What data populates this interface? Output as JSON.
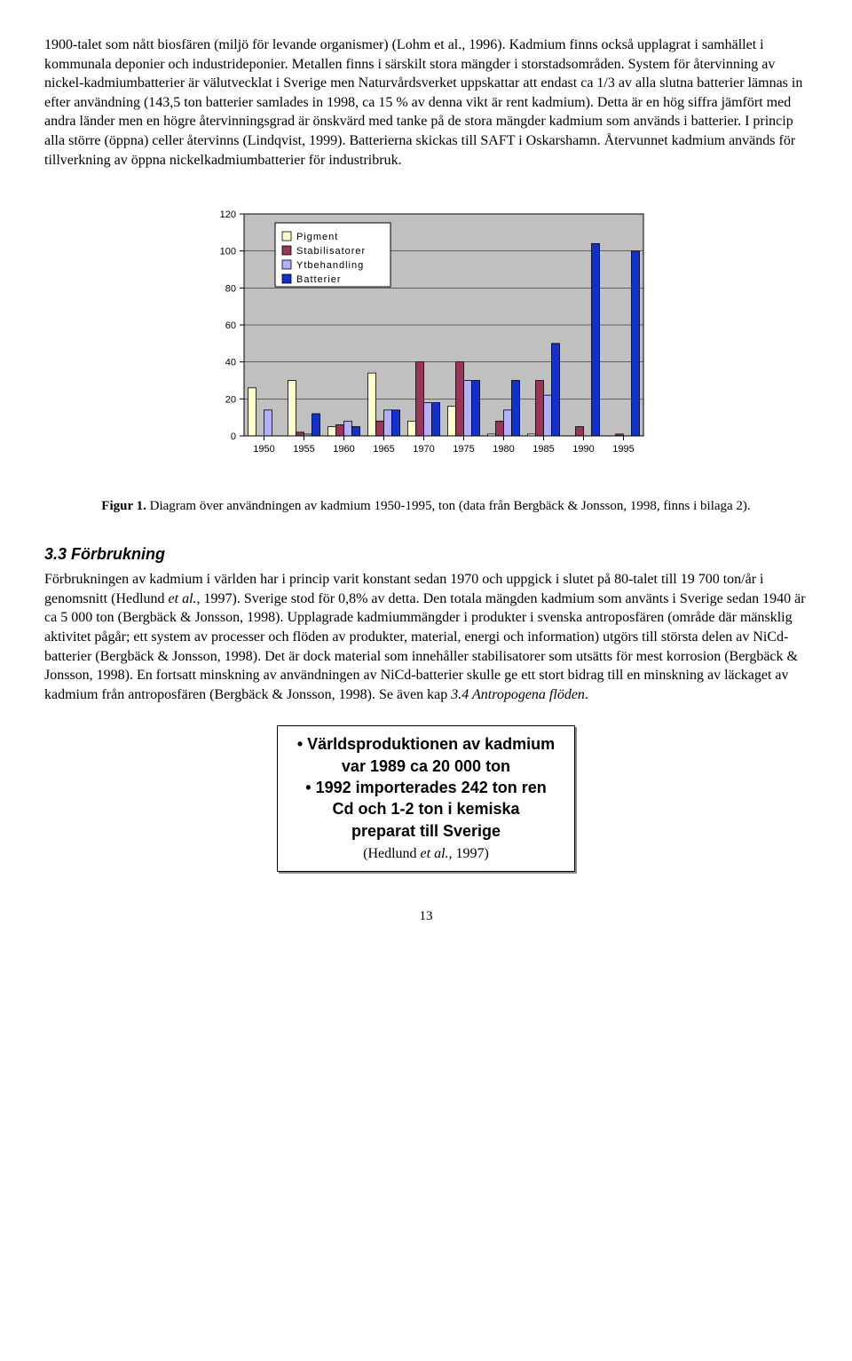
{
  "paragraph1": "1900-talet som nått biosfären (miljö för levande organismer) (Lohm et al., 1996). Kadmium finns också upplagrat i samhället i kommunala deponier och industrideponier. Metallen finns i särskilt stora mängder i storstadsområden. System för återvinning av nickel-kadmiumbatterier är välutvecklat i Sverige men Naturvårdsverket uppskattar att endast ca 1/3 av alla slutna batterier lämnas in efter användning (143,5 ton batterier samlades in 1998, ca 15 % av denna vikt är rent kadmium). Detta är en hög siffra jämfört med andra länder men en högre återvinningsgrad är önskvärd med tanke på de stora mängder kadmium som används i batterier. I princip alla större (öppna) celler återvinns (Lindqvist, 1999). Batterierna skickas till SAFT i Oskarshamn. Återvunnet kadmium används för tillverkning av öppna nickelkadmiumbatterier för industribruk.",
  "chart": {
    "type": "bar",
    "categories": [
      "1950",
      "1955",
      "1960",
      "1965",
      "1970",
      "1975",
      "1980",
      "1985",
      "1990",
      "1995"
    ],
    "series": [
      {
        "name": "Pigment",
        "color": "#ffffcc",
        "border": "#000000",
        "values": [
          26,
          30,
          5,
          34,
          8,
          16,
          1,
          1,
          0,
          0
        ]
      },
      {
        "name": "Stabilisatorer",
        "color": "#9a3557",
        "border": "#000000",
        "values": [
          0,
          2,
          6,
          8,
          40,
          40,
          8,
          30,
          5,
          1
        ]
      },
      {
        "name": "Ytbehandling",
        "color": "#b0b0ff",
        "border": "#000000",
        "values": [
          14,
          1,
          8,
          14,
          18,
          30,
          14,
          22,
          0,
          0
        ]
      },
      {
        "name": "Batterier",
        "color": "#1030d0",
        "border": "#000000",
        "values": [
          0,
          12,
          5,
          14,
          18,
          30,
          30,
          50,
          104,
          100
        ]
      }
    ],
    "ylim": [
      0,
      120
    ],
    "yticks": [
      0,
      20,
      40,
      60,
      80,
      100,
      120
    ],
    "grid_color": "#000000",
    "bg_color": "#c0c0c0",
    "legend_bg": "#ffffff",
    "legend_border": "#000000",
    "tick_fontsize": 11,
    "legend_fontsize": 11,
    "bar_group_width": 0.8
  },
  "caption_bold": "Figur 1.",
  "caption_rest": " Diagram över användningen av kadmium 1950-1995, ton (data från Bergbäck & Jonsson, 1998, finns i bilaga 2).",
  "section_num": "3.3",
  "section_title": " Förbrukning",
  "paragraph2_a": "Förbrukningen av kadmium i världen har i princip varit konstant sedan 1970 och uppgick i slutet på 80-talet till 19 700 ton/år i genomsnitt (Hedlund ",
  "paragraph2_b": "et al.",
  "paragraph2_c": ", 1997). Sverige stod för 0,8% av detta. Den totala mängden kadmium som använts i Sverige sedan 1940 är ca 5 000 ton (Bergbäck & Jonsson, 1998). Upplagrade kadmiummängder i produkter i svenska antroposfären (område där mänsklig aktivitet pågår; ett system av processer och flöden av produkter, material, energi och information) utgörs till största delen av NiCd-batterier (Bergbäck & Jonsson, 1998). Det är dock material som innehåller stabilisatorer som utsätts för mest korrosion (Bergbäck & Jonsson, 1998). En fortsatt minskning av användningen av NiCd-batterier skulle ge ett stort bidrag till en minskning av läckaget av kadmium från antroposfären (Bergbäck & Jonsson, 1998). Se även kap ",
  "paragraph2_d": "3.4 Antropogena flöden",
  "paragraph2_e": ".",
  "box": {
    "l1": "Världsproduktionen av kadmium",
    "l2": "var 1989 ca 20 000 ton",
    "l3": "1992 importerades 242 ton ren",
    "l4": "Cd och 1-2 ton i kemiska",
    "l5": "preparat till Sverige",
    "ref_a": "(Hedlund ",
    "ref_b": "et al.",
    "ref_c": ", 1997)"
  },
  "page_number": "13"
}
